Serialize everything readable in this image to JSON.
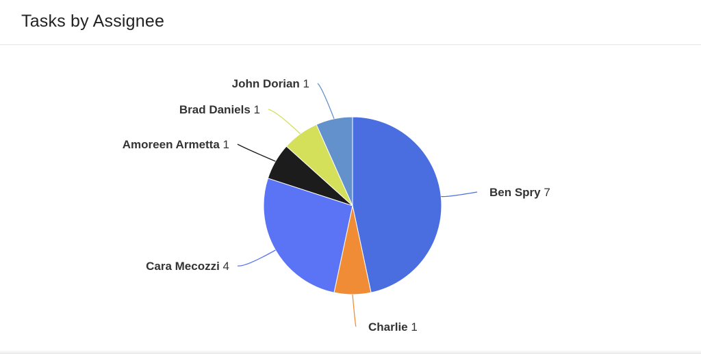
{
  "header": {
    "title": "Tasks by Assignee"
  },
  "chart_data": {
    "type": "pie",
    "categories": [
      "Ben Spry",
      "Charlie",
      "Cara Mecozzi",
      "Amoreen Armetta",
      "Brad Daniels",
      "John Dorian"
    ],
    "values": [
      7,
      1,
      4,
      1,
      1,
      1
    ],
    "colors": [
      "#4a6ee0",
      "#f08c36",
      "#5b73f5",
      "#1c1c1c",
      "#d4df5a",
      "#6391cc"
    ],
    "title": "",
    "legend": "none",
    "data_labels": "name and value, outside with connector lines"
  }
}
